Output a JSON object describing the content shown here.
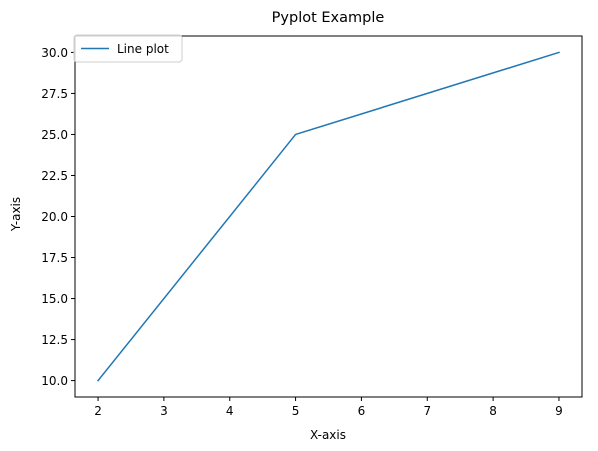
{
  "chart_data": {
    "type": "line",
    "title": "Pyplot Example",
    "xlabel": "X-axis",
    "ylabel": "Y-axis",
    "xlim": [
      1.65,
      9.35
    ],
    "ylim": [
      9.0,
      31.0
    ],
    "xticks": [
      2,
      3,
      4,
      5,
      6,
      7,
      8,
      9
    ],
    "xtick_labels": [
      "2",
      "3",
      "4",
      "5",
      "6",
      "7",
      "8",
      "9"
    ],
    "yticks": [
      10.0,
      12.5,
      15.0,
      17.5,
      20.0,
      22.5,
      25.0,
      27.5,
      30.0
    ],
    "ytick_labels": [
      "10.0",
      "12.5",
      "15.0",
      "17.5",
      "20.0",
      "22.5",
      "25.0",
      "27.5",
      "30.0"
    ],
    "grid": false,
    "legend_position": "top-left",
    "series": [
      {
        "name": "Line plot",
        "color": "#1f77b4",
        "x": [
          2,
          5,
          9
        ],
        "y": [
          10,
          25,
          30
        ]
      }
    ]
  }
}
